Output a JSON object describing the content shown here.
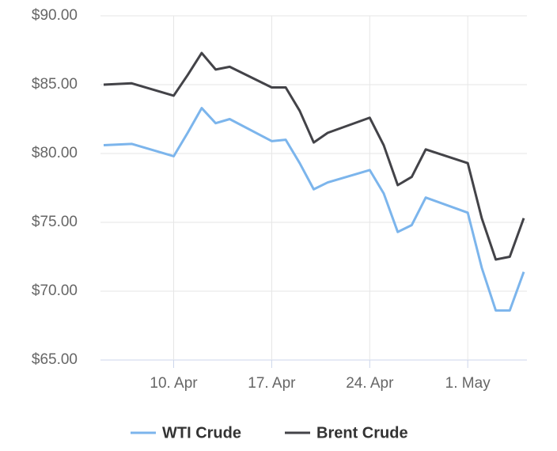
{
  "chart_data": {
    "type": "line",
    "x": [
      "5. Apr",
      "7. Apr",
      "10. Apr",
      "11. Apr",
      "12. Apr",
      "13. Apr",
      "14. Apr",
      "17. Apr",
      "18. Apr",
      "19. Apr",
      "20. Apr",
      "21. Apr",
      "24. Apr",
      "25. Apr",
      "26. Apr",
      "27. Apr",
      "28. Apr",
      "1. May",
      "2. May",
      "3. May",
      "4. May",
      "5. May"
    ],
    "series": [
      {
        "name": "WTI Crude",
        "color": "#7cb5ec",
        "values": [
          80.6,
          80.7,
          79.8,
          81.5,
          83.3,
          82.2,
          82.5,
          80.9,
          81.0,
          79.3,
          77.4,
          77.9,
          78.8,
          77.1,
          74.3,
          74.8,
          76.8,
          75.7,
          71.7,
          68.6,
          68.6,
          71.4
        ]
      },
      {
        "name": "Brent Crude",
        "color": "#434348",
        "values": [
          85.0,
          85.1,
          84.2,
          85.7,
          87.3,
          86.1,
          86.3,
          84.8,
          84.8,
          83.1,
          80.8,
          81.5,
          82.6,
          80.6,
          77.7,
          78.3,
          80.3,
          79.3,
          75.3,
          72.3,
          72.5,
          75.3
        ]
      }
    ],
    "xlim": [
      "5. Apr",
      "5. May"
    ],
    "xticks": [
      "10. Apr",
      "17. Apr",
      "24. Apr",
      "1. May"
    ],
    "ylim": [
      65,
      90
    ],
    "yticks": [
      {
        "value": 65,
        "label": "$65.00"
      },
      {
        "value": 70,
        "label": "$70.00"
      },
      {
        "value": 75,
        "label": "$75.00"
      },
      {
        "value": 80,
        "label": "$80.00"
      },
      {
        "value": 85,
        "label": "$85.00"
      },
      {
        "value": 90,
        "label": "$90.00"
      }
    ],
    "grid": true,
    "legend": "bottom"
  }
}
